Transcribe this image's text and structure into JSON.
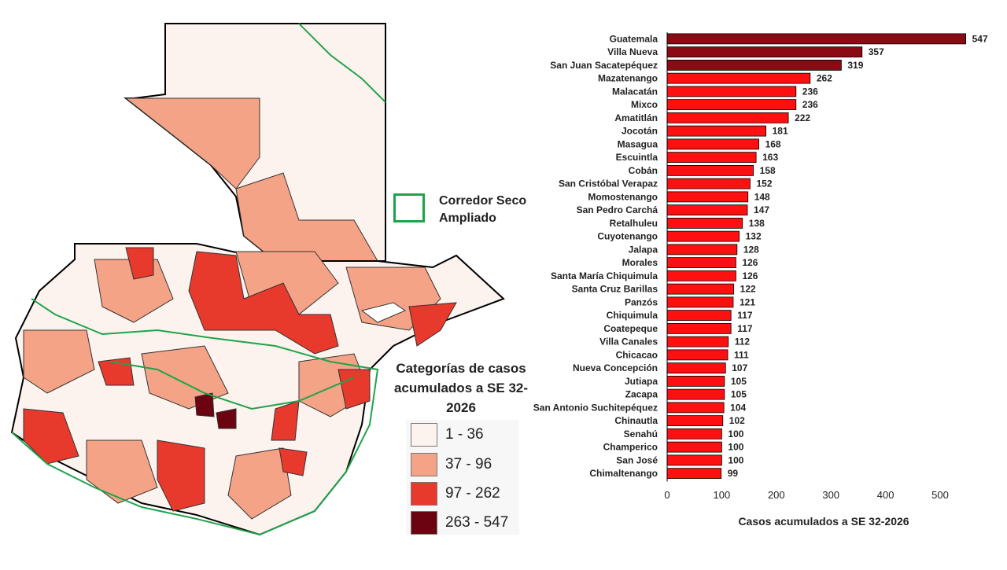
{
  "colors": {
    "cat1": "#fdf3ee",
    "cat2": "#f5a386",
    "cat3": "#e8392d",
    "cat4": "#6b0310",
    "border": "#000000",
    "corridor": "#1fa34a",
    "bar_top": "#8b0a14",
    "bar_rest": "#ff1010"
  },
  "map": {
    "corridor_label": "Corredor Seco Ampliado",
    "legend_title": "Categorías de casos acumulados a SE 32-2026",
    "legend_items": [
      {
        "label": "1 - 36",
        "color": "#fdf3ee"
      },
      {
        "label": "37 - 96",
        "color": "#f5a386"
      },
      {
        "label": "97 - 262",
        "color": "#e8392d"
      },
      {
        "label": "263 - 547",
        "color": "#6b0310"
      }
    ]
  },
  "chart_data": {
    "type": "bar",
    "orientation": "horizontal",
    "xlabel": "Casos acumulados a SE 32-2026",
    "xlim": [
      0,
      550
    ],
    "xticks": [
      0,
      100,
      200,
      300,
      400,
      500
    ],
    "categories": [
      "Guatemala",
      "Villa Nueva",
      "San Juan Sacatepéquez",
      "Mazatenango",
      "Malacatán",
      "Mixco",
      "Amatitlán",
      "Jocotán",
      "Masagua",
      "Escuintla",
      "Cobán",
      "San Cristóbal Verapaz",
      "Momostenango",
      "San Pedro Carchá",
      "Retalhuleu",
      "Cuyotenango",
      "Jalapa",
      "Morales",
      "Santa María Chiquimula",
      "Santa Cruz Barillas",
      "Panzós",
      "Chiquimula",
      "Coatepeque",
      "Villa Canales",
      "Chicacao",
      "Nueva Concepción",
      "Jutiapa",
      "Zacapa",
      "San Antonio Suchitepéquez",
      "Chinautla",
      "Senahú",
      "Champerico",
      "San José",
      "Chimaltenango"
    ],
    "values": [
      547,
      357,
      319,
      262,
      236,
      236,
      222,
      181,
      168,
      163,
      158,
      152,
      148,
      147,
      138,
      132,
      128,
      126,
      126,
      122,
      121,
      117,
      117,
      112,
      111,
      107,
      105,
      105,
      104,
      102,
      100,
      100,
      100,
      99
    ],
    "grid": false,
    "legend": "none"
  }
}
